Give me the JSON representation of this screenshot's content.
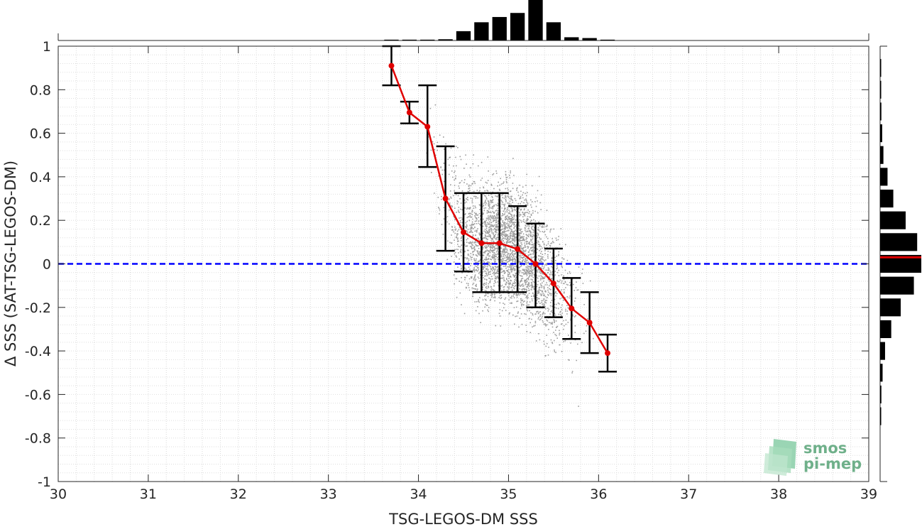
{
  "chart_data": {
    "type": "scatter",
    "xlabel": "TSG-LEGOS-DM SSS",
    "ylabel": "Δ SSS (SAT-TSG-LEGOS-DM)",
    "xlim": [
      30,
      39
    ],
    "ylim": [
      -1,
      1
    ],
    "x_ticks": [
      30,
      31,
      32,
      33,
      34,
      35,
      36,
      37,
      38,
      39
    ],
    "y_ticks": [
      -1,
      -0.8,
      -0.6,
      -0.4,
      -0.2,
      0,
      0.2,
      0.4,
      0.6,
      0.8,
      1
    ],
    "grid": "minor dotted",
    "reference_line": {
      "y": 0,
      "color": "#0000ff",
      "style": "dashed"
    },
    "scatter_cloud": {
      "color": "#8c8c8c",
      "description_bounds": {
        "x_min": 34.0,
        "x_max": 35.9,
        "y_min": -0.7,
        "y_max": 0.9
      }
    },
    "binned_means": {
      "color": "#e00000",
      "x": [
        33.7,
        33.9,
        34.1,
        34.3,
        34.5,
        34.7,
        34.9,
        35.1,
        35.3,
        35.5,
        35.7,
        35.9,
        36.1
      ],
      "mean": [
        0.91,
        0.695,
        0.63,
        0.3,
        0.145,
        0.095,
        0.095,
        0.068,
        0.0,
        -0.09,
        -0.205,
        -0.27,
        -0.41
      ],
      "low": [
        0.82,
        0.645,
        0.445,
        0.06,
        -0.035,
        -0.13,
        -0.13,
        -0.13,
        -0.2,
        -0.245,
        -0.345,
        -0.41,
        -0.495
      ],
      "high": [
        1.0,
        0.745,
        0.82,
        0.54,
        0.325,
        0.325,
        0.325,
        0.265,
        0.185,
        0.07,
        -0.065,
        -0.13,
        -0.325
      ]
    },
    "x_histogram": {
      "bin_centers": [
        33.7,
        33.9,
        34.1,
        34.3,
        34.5,
        34.7,
        34.9,
        35.1,
        35.3,
        35.5,
        35.7,
        35.9,
        36.1
      ],
      "relative_heights": [
        0.02,
        0.02,
        0.02,
        0.03,
        0.23,
        0.45,
        0.58,
        0.68,
        1.0,
        0.45,
        0.08,
        0.06,
        0.02
      ]
    },
    "y_histogram": {
      "bin_centers": [
        0.9,
        0.8,
        0.7,
        0.6,
        0.5,
        0.4,
        0.3,
        0.2,
        0.1,
        0.0,
        -0.1,
        -0.2,
        -0.3,
        -0.4,
        -0.5,
        -0.6,
        -0.7
      ],
      "relative_widths": [
        0.02,
        0.02,
        0.03,
        0.05,
        0.08,
        0.18,
        0.32,
        0.62,
        0.9,
        1.0,
        0.82,
        0.5,
        0.27,
        0.12,
        0.06,
        0.03,
        0.02
      ],
      "mean_marker_y": 0.03,
      "mean_marker_color": "#e00000"
    }
  },
  "logo": {
    "line1": "smos",
    "line2": "pi-mep",
    "color": "#6fb08a"
  }
}
